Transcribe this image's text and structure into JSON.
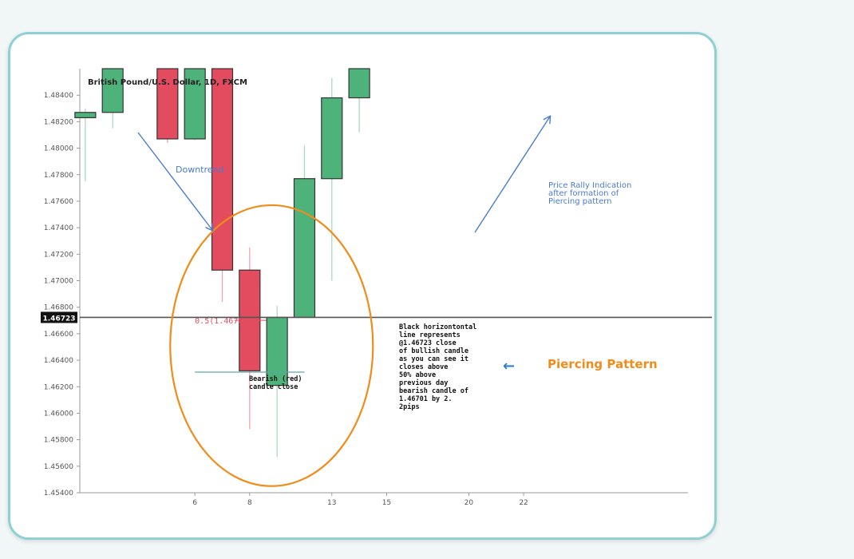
{
  "colors": {
    "bull": "#4db37a",
    "bear": "#e34b5e",
    "wick_bull": "#a9d9bd",
    "wick_bear": "#f2a3ad",
    "circle": "#f08c1a",
    "annot_blue": "#4a7bd0",
    "axis": "#999999",
    "close_line": "#555555",
    "midpoint_text": "#e34b5e",
    "teal_line": "#5aa7a7"
  },
  "chart_data": {
    "type": "candlestick",
    "title": "British Pound/U.S. Dollar, 1D, FXCM",
    "ylim": [
      1.454,
      1.486
    ],
    "xlim": [
      1.8,
      24.0
    ],
    "y_ticks": [
      "1.45400",
      "1.45600",
      "1.45800",
      "1.46000",
      "1.46200",
      "1.46400",
      "1.46600",
      "1.46800",
      "1.47000",
      "1.47200",
      "1.47400",
      "1.47600",
      "1.47800",
      "1.48000",
      "1.48200",
      "1.48400"
    ],
    "x_ticks": [
      "6",
      "8",
      "13",
      "15",
      "20",
      "22"
    ],
    "x_tick_values": [
      6,
      8,
      11,
      13,
      16,
      18
    ],
    "candles": [
      {
        "x": 2,
        "open": 1.4823,
        "close": 1.4827,
        "high": 1.483,
        "low": 1.4775,
        "dir": "bull"
      },
      {
        "x": 3,
        "open": 1.4827,
        "close": 1.486,
        "high": 1.486,
        "low": 1.4815,
        "dir": "bull"
      },
      {
        "x": 5,
        "open": 1.486,
        "close": 1.4807,
        "high": 1.486,
        "low": 1.4804,
        "dir": "bear"
      },
      {
        "x": 6,
        "open": 1.4807,
        "close": 1.486,
        "high": 1.486,
        "low": 1.4806,
        "dir": "bull"
      },
      {
        "x": 7,
        "open": 1.486,
        "close": 1.4708,
        "high": 1.486,
        "low": 1.4684,
        "dir": "bear"
      },
      {
        "x": 8,
        "open": 1.4708,
        "close": 1.4632,
        "high": 1.4725,
        "low": 1.4588,
        "dir": "bear"
      },
      {
        "x": 9,
        "open": 1.4621,
        "close": 1.46723,
        "high": 1.4681,
        "low": 1.4567,
        "dir": "bull"
      },
      {
        "x": 10,
        "open": 1.46723,
        "close": 1.4777,
        "high": 1.4802,
        "low": 1.4672,
        "dir": "bull"
      },
      {
        "x": 11,
        "open": 1.4777,
        "close": 1.4838,
        "high": 1.4853,
        "low": 1.47,
        "dir": "bull"
      },
      {
        "x": 12,
        "open": 1.4838,
        "close": 1.486,
        "high": 1.486,
        "low": 1.4812,
        "dir": "bull"
      }
    ],
    "close_line": {
      "value": 1.46723,
      "label": "1.46723"
    },
    "midpoint": {
      "value": 1.46701,
      "label": "0.5(1.46701)"
    },
    "bear_close_line": {
      "value": 1.4631,
      "from_x": 6.0,
      "to_x": 10.0
    },
    "circle": {
      "cx": 8.8,
      "cy": 1.4651,
      "rx": 3.7,
      "ry": 0.0106
    },
    "annotations": {
      "downtrend": "Downtrend",
      "rally": [
        "Price Rally Indication",
        "after formation of",
        "Piercing pattern"
      ],
      "piercing": "Piercing Pattern",
      "piercing_arrow": "←",
      "black_line_note": [
        "Black horizontontal",
        "line represents",
        "@1.46723 close",
        "of bullish candle",
        "as you can see it",
        "closes above",
        "50% above",
        "previous day",
        "bearish candle of",
        "1.46701 by 2.",
        "2pips"
      ],
      "bearish_note": [
        "Bearish (red)",
        "candle close"
      ]
    }
  }
}
